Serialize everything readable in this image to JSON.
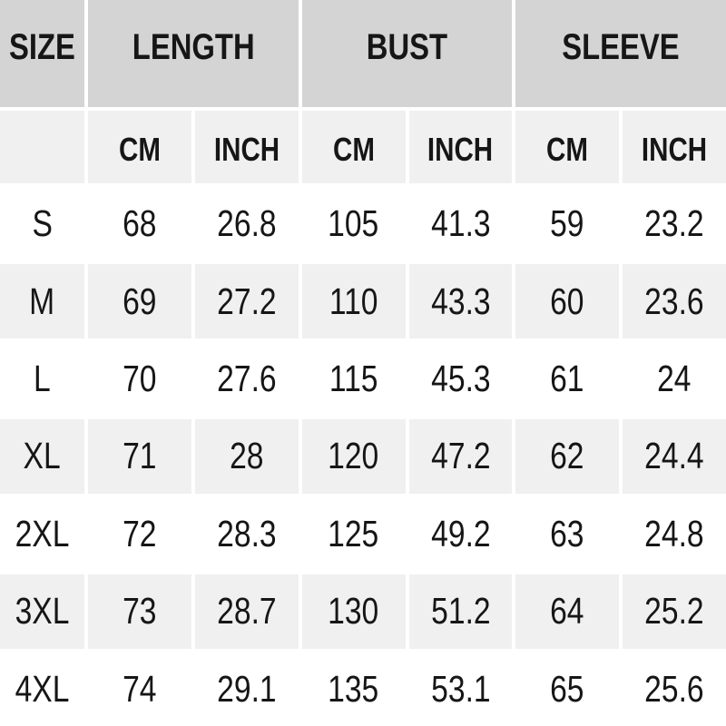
{
  "chart_data": {
    "type": "table",
    "column_groups": [
      {
        "label": "SIZE",
        "span": 1
      },
      {
        "label": "LENGTH",
        "span": 2
      },
      {
        "label": "BUST",
        "span": 2
      },
      {
        "label": "SLEEVE",
        "span": 2
      }
    ],
    "unit_headers": [
      "CM",
      "INCH",
      "CM",
      "INCH",
      "CM",
      "INCH"
    ],
    "rows": [
      {
        "size": "S",
        "length_cm": 68,
        "length_inch": 26.8,
        "bust_cm": 105,
        "bust_inch": 41.3,
        "sleeve_cm": 59,
        "sleeve_inch": 23.2
      },
      {
        "size": "M",
        "length_cm": 69,
        "length_inch": 27.2,
        "bust_cm": 110,
        "bust_inch": 43.3,
        "sleeve_cm": 60,
        "sleeve_inch": 23.6
      },
      {
        "size": "L",
        "length_cm": 70,
        "length_inch": 27.6,
        "bust_cm": 115,
        "bust_inch": 45.3,
        "sleeve_cm": 61,
        "sleeve_inch": 24
      },
      {
        "size": "XL",
        "length_cm": 71,
        "length_inch": 28,
        "bust_cm": 120,
        "bust_inch": 47.2,
        "sleeve_cm": 62,
        "sleeve_inch": 24.4
      },
      {
        "size": "2XL",
        "length_cm": 72,
        "length_inch": 28.3,
        "bust_cm": 125,
        "bust_inch": 49.2,
        "sleeve_cm": 63,
        "sleeve_inch": 24.8
      },
      {
        "size": "3XL",
        "length_cm": 73,
        "length_inch": 28.7,
        "bust_cm": 130,
        "bust_inch": 51.2,
        "sleeve_cm": 64,
        "sleeve_inch": 25.2
      },
      {
        "size": "4XL",
        "length_cm": 74,
        "length_inch": 29.1,
        "bust_cm": 135,
        "bust_inch": 53.1,
        "sleeve_cm": 65,
        "sleeve_inch": 25.6
      }
    ]
  },
  "colors": {
    "group_header_bg": "#d4d4d4",
    "stripe_bg": "#f0f0f0",
    "row_bg": "#ffffff",
    "page_bg": "#ffffff",
    "text": "#161616"
  }
}
